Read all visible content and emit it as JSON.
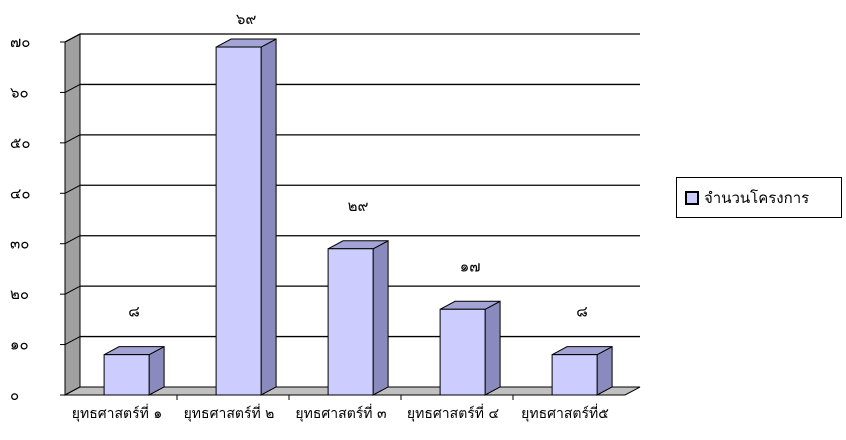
{
  "chart_data": {
    "type": "bar",
    "categories": [
      "ยุทธศาสตร์ที่ ๑",
      "ยุทธศาสตร์ที่ ๒",
      "ยุทธศาสตร์ที่ ๓",
      "ยุทธศาสตร์ที่ ๔",
      "ยุทธศาสตร์ที่๕"
    ],
    "series": [
      {
        "name": "จำนวนโครงการ",
        "values": [
          8,
          69,
          29,
          17,
          8
        ],
        "labels": [
          "๘",
          "๖๙",
          "๒๙",
          "๑๗",
          "๘"
        ],
        "color": "#ccccff"
      }
    ],
    "ylim": [
      0,
      70
    ],
    "yticks": [
      0,
      10,
      20,
      30,
      40,
      50,
      60,
      70
    ],
    "ytick_labels": [
      "๐",
      "๑๐",
      "๒๐",
      "๓๐",
      "๔๐",
      "๕๐",
      "๖๐",
      "๗๐"
    ],
    "grid": true,
    "legend_position": "right",
    "title": "",
    "xlabel": "",
    "ylabel": ""
  },
  "colors": {
    "bar_front": "#ccccff",
    "bar_side": "#8a8abf",
    "bar_top": "#a3a3d6",
    "floor": "#c0c0c0",
    "wall_side": "#a0a0a0"
  }
}
